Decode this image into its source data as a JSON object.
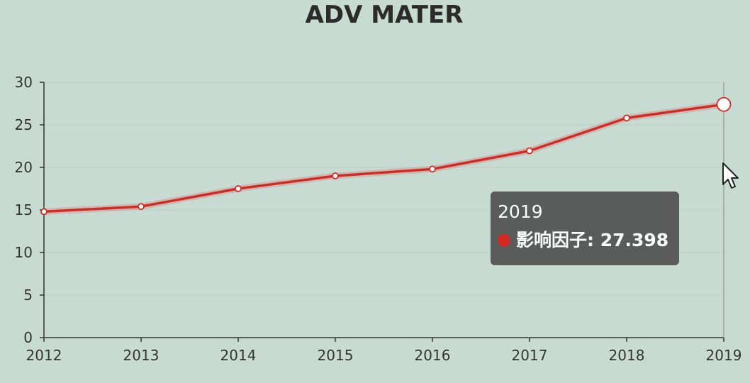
{
  "chart_data": {
    "type": "line",
    "title": "ADV MATER",
    "x": [
      "2012",
      "2013",
      "2014",
      "2015",
      "2016",
      "2017",
      "2018",
      "2019"
    ],
    "series": [
      {
        "name": "影响因子",
        "values": [
          14.8,
          15.4,
          17.5,
          19.0,
          19.8,
          21.95,
          25.8,
          27.398
        ],
        "color": "#d42a23"
      }
    ],
    "yticks": [
      "0",
      "5",
      "10",
      "15",
      "20",
      "25",
      "30"
    ],
    "ylim": [
      0,
      30
    ],
    "grid": true,
    "legend": "none"
  },
  "tooltip": {
    "title": "2019",
    "series_name": "影响因子",
    "value_text": "27.398",
    "dot_color": "#d42a23"
  },
  "cursor": {
    "icon": "mouse-pointer-icon"
  }
}
